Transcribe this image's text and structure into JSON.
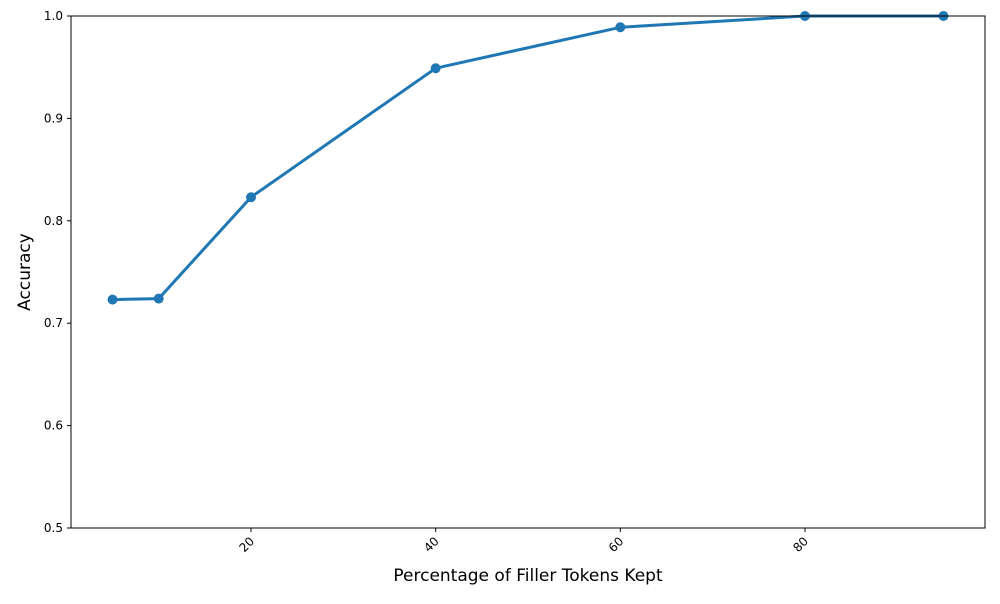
{
  "chart_data": {
    "type": "line",
    "xlabel": "Percentage of Filler Tokens Kept",
    "ylabel": "Accuracy",
    "x": [
      5,
      10,
      20,
      40,
      60,
      80,
      95
    ],
    "series": [
      {
        "values": [
          0.723,
          0.724,
          0.823,
          0.949,
          0.989,
          1.0,
          1.0
        ],
        "color": "#1f77b4"
      }
    ],
    "xlim": [
      0.5,
      99.5
    ],
    "ylim": [
      0.5,
      1.0
    ],
    "xticks": [
      20,
      40,
      60,
      80
    ],
    "xtick_labels": [
      "20",
      "40",
      "60",
      "80"
    ],
    "xtick_rotation": 45,
    "yticks": [
      0.5,
      0.6,
      0.7,
      0.8,
      0.9,
      1.0
    ],
    "ytick_labels": [
      "0.5",
      "0.6",
      "0.7",
      "0.8",
      "0.9",
      "1.0"
    ],
    "grid": false,
    "markers": true
  }
}
